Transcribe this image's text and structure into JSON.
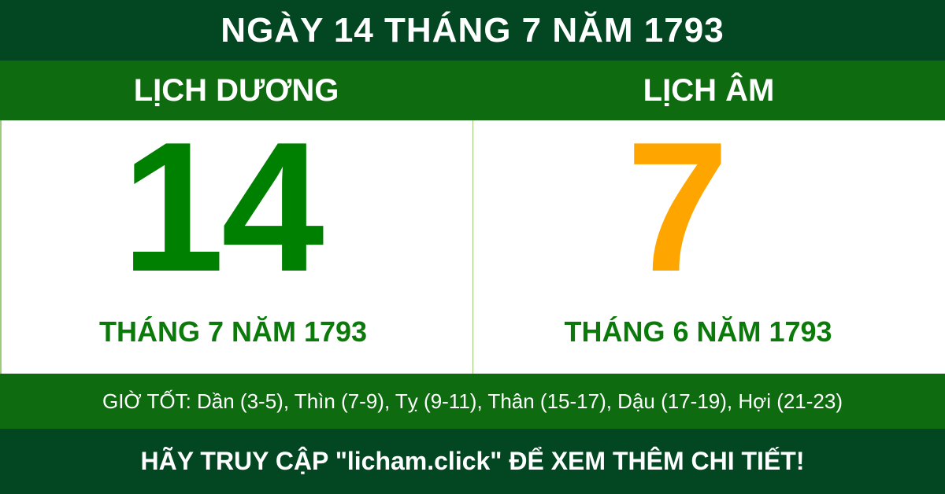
{
  "title": "NGÀY 14 THÁNG 7 NĂM 1793",
  "solar": {
    "heading": "LỊCH DƯƠNG",
    "day": "14",
    "month_year": "THÁNG 7 NĂM 1793"
  },
  "lunar": {
    "heading": "LỊCH ÂM",
    "day": "7",
    "month_year": "THÁNG 6 NĂM 1793"
  },
  "good_hours": "GIỜ TỐT: Dần (3-5), Thìn (7-9), Tỵ (9-11), Thân (15-17), Dậu (17-19), Hợi (21-23)",
  "footer": "HÃY TRUY CẬP \"licham.click\" ĐỂ XEM THÊM CHI TIẾT!",
  "colors": {
    "dark_green": "#034722",
    "green": "#0f6b10",
    "solar_day": "#008000",
    "lunar_day": "#ffa500"
  }
}
